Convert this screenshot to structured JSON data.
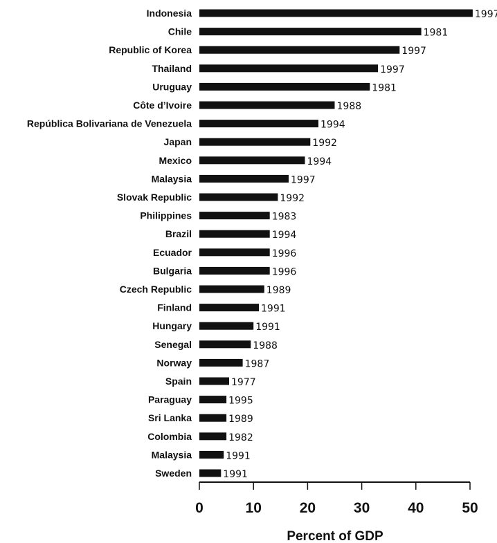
{
  "chart_data": {
    "type": "bar",
    "orientation": "horizontal",
    "categories": [
      "Indonesia",
      "Chile",
      "Republic of Korea",
      "Thailand",
      "Uruguay",
      "Côte d’Ivoire",
      "República Bolivariana de Venezuela",
      "Japan",
      "Mexico",
      "Malaysia",
      "Slovak Republic",
      "Philippines",
      "Brazil",
      "Ecuador",
      "Bulgaria",
      "Czech Republic",
      "Finland",
      "Hungary",
      "Senegal",
      "Norway",
      "Spain",
      "Paraguay",
      "Sri Lanka",
      "Colombia",
      "Malaysia",
      "Sweden"
    ],
    "values": [
      50.5,
      41,
      37,
      33,
      31.5,
      25,
      22,
      20.5,
      19.5,
      16.5,
      14.5,
      13,
      13,
      13,
      13,
      12,
      11,
      10,
      9.5,
      8,
      5.5,
      5,
      5,
      5,
      4.5,
      4
    ],
    "bar_labels": [
      "1997",
      "1981",
      "1997",
      "1997",
      "1981",
      "1988",
      "1994",
      "1992",
      "1994",
      "1997",
      "1992",
      "1983",
      "1994",
      "1996",
      "1996",
      "1989",
      "1991",
      "1991",
      "1988",
      "1987",
      "1977",
      "1995",
      "1989",
      "1982",
      "1991",
      "1991"
    ],
    "xlabel": "Percent of GDP",
    "ylabel": "",
    "title": "",
    "xlim": [
      0,
      50
    ],
    "xticks": [
      "0",
      "10",
      "20",
      "30",
      "40",
      "50"
    ],
    "grid": false,
    "legend": "none",
    "bar_color": "#111111"
  }
}
